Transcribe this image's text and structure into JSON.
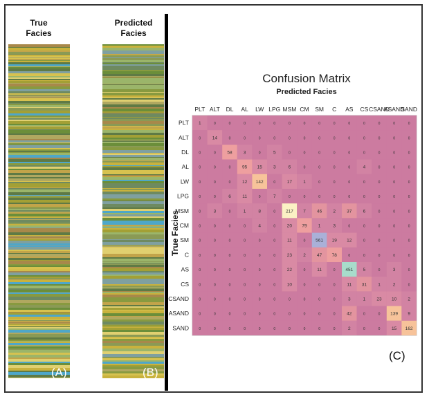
{
  "panels": {
    "a": {
      "title_line1": "True",
      "title_line2": "Facies",
      "label": "(A)"
    },
    "b": {
      "title_line1": "Predicted",
      "title_line2": "Facies",
      "label": "(B)"
    },
    "c": {
      "label": "(C)"
    }
  },
  "strip_palette": [
    "#6b8e3a",
    "#a3a035",
    "#c9b23d",
    "#8a9a55",
    "#d7c24f",
    "#5f7a45",
    "#9bb56a",
    "#c2a44a",
    "#7fa0a0",
    "#4ea7c9",
    "#b0a860",
    "#e0d070",
    "#889a40",
    "#a8884a",
    "#6e8a60"
  ],
  "chart_data": {
    "type": "heatmap",
    "title": "Confusion Matrix",
    "xlabel": "Predicted Facies",
    "ylabel": "True Facies",
    "x_categories": [
      "PLT",
      "ALT",
      "DL",
      "AL",
      "LW",
      "LPG",
      "MSM",
      "CM",
      "SM",
      "C",
      "AS",
      "CS",
      "CSAND",
      "ASAND",
      "SAND"
    ],
    "y_categories": [
      "PLT",
      "ALT",
      "DL",
      "AL",
      "LW",
      "LPG",
      "MSM",
      "CM",
      "SM",
      "C",
      "AS",
      "CS",
      "CSAND",
      "ASAND",
      "SAND"
    ],
    "matrix": [
      [
        1,
        0,
        0,
        0,
        0,
        0,
        0,
        0,
        0,
        0,
        0,
        0,
        0,
        0,
        0
      ],
      [
        0,
        14,
        0,
        0,
        0,
        0,
        0,
        0,
        0,
        0,
        0,
        0,
        0,
        0,
        0
      ],
      [
        0,
        0,
        58,
        3,
        0,
        5,
        0,
        0,
        0,
        0,
        0,
        0,
        0,
        0,
        0
      ],
      [
        0,
        0,
        0,
        95,
        15,
        3,
        6,
        0,
        0,
        0,
        0,
        4,
        0,
        0,
        0
      ],
      [
        0,
        0,
        0,
        12,
        142,
        0,
        17,
        1,
        0,
        0,
        0,
        0,
        0,
        0,
        0
      ],
      [
        0,
        0,
        6,
        11,
        0,
        7,
        0,
        0,
        0,
        0,
        0,
        0,
        0,
        0,
        0
      ],
      [
        0,
        3,
        0,
        1,
        8,
        0,
        217,
        7,
        46,
        2,
        37,
        6,
        0,
        0,
        0
      ],
      [
        0,
        0,
        0,
        0,
        4,
        0,
        20,
        79,
        1,
        3,
        0,
        0,
        0,
        0,
        0
      ],
      [
        0,
        0,
        0,
        0,
        0,
        0,
        11,
        0,
        561,
        19,
        12,
        0,
        0,
        0,
        0
      ],
      [
        0,
        0,
        0,
        0,
        0,
        0,
        23,
        2,
        47,
        78,
        0,
        0,
        0,
        0,
        0
      ],
      [
        0,
        0,
        0,
        0,
        0,
        0,
        22,
        0,
        11,
        0,
        451,
        5,
        0,
        3,
        0
      ],
      [
        0,
        0,
        0,
        0,
        0,
        0,
        10,
        0,
        0,
        0,
        11,
        31,
        1,
        2,
        0
      ],
      [
        0,
        0,
        0,
        0,
        0,
        0,
        0,
        0,
        0,
        0,
        3,
        1,
        23,
        10,
        2
      ],
      [
        0,
        0,
        0,
        0,
        0,
        0,
        0,
        0,
        0,
        0,
        42,
        0,
        0,
        139,
        9
      ],
      [
        0,
        0,
        0,
        0,
        0,
        0,
        0,
        0,
        0,
        0,
        2,
        0,
        0,
        15,
        162
      ]
    ],
    "colors": {
      "base": "#cc7ba0",
      "low": "#d98aa4",
      "mid": "#ee9f9f",
      "high": "#f7c39a",
      "peak": "#fbf1c4",
      "max_cool": "#aab0d8",
      "teal": "#a8dccb"
    }
  }
}
